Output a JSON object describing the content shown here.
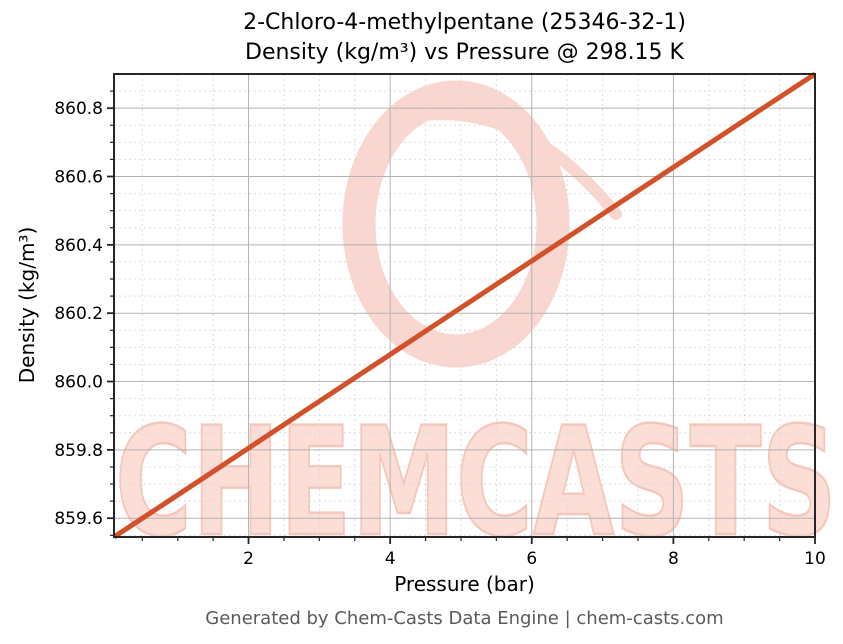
{
  "title": {
    "line1": "2-Chloro-4-methylpentane (25346-32-1)",
    "line2": "Density (kg/m³) vs Pressure @ 298.15 K"
  },
  "footer": {
    "text": "Generated by Chem-Casts Data Engine | chem-casts.com",
    "color": "#5a5a5a"
  },
  "watermark": {
    "text": "CHEMCASTS",
    "logo_icon": "brush-circle-logo",
    "logo_color": "#f9d6cf",
    "text_fill": "#fcded7",
    "text_outline": "#f5c6bb"
  },
  "chart_data": {
    "type": "line",
    "compound": "2-Chloro-4-methylpentane",
    "cas_number": "25346-32-1",
    "title": "2-Chloro-4-methylpentane (25346-32-1)",
    "subtitle": "Density (kg/m³) vs Pressure @ 298.15 K",
    "temperature": "298.15 K",
    "xlabel": "Pressure (bar)",
    "ylabel": "Density (kg/m³)",
    "xlim": [
      0.1,
      10
    ],
    "ylim": [
      859.545,
      860.9
    ],
    "x_major_ticks": [
      2,
      4,
      6,
      8,
      10
    ],
    "x_minor_step": 0.5,
    "y_major_ticks": [
      859.6,
      859.8,
      860.0,
      860.2,
      860.4,
      860.6,
      860.8
    ],
    "y_minor_step": 0.05,
    "grid": {
      "major_style": "solid",
      "minor_style": "dashed",
      "major_color": "#b3b3b3",
      "minor_color": "#dcdcdc"
    },
    "axis": {
      "spine_color": "#262626",
      "tick_color": "#262626",
      "tick_label_color": "#000000"
    },
    "legend": "none",
    "series": [
      {
        "name": "Density",
        "color": "#d2512a",
        "x": [
          0.1,
          1,
          2,
          3,
          4,
          5,
          6,
          7,
          8,
          9,
          10
        ],
        "y": [
          859.545,
          859.668,
          859.805,
          859.942,
          860.079,
          860.216,
          860.353,
          860.49,
          860.627,
          860.764,
          860.9
        ]
      }
    ]
  }
}
